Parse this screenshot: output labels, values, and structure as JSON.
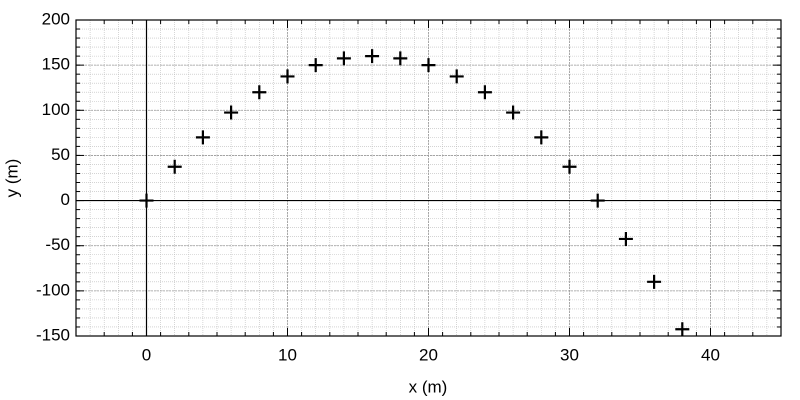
{
  "chart_data": {
    "type": "scatter",
    "x_label": "x (m)",
    "y_label": "y (m)",
    "x": [
      0,
      2,
      4,
      6,
      8,
      10,
      12,
      14,
      16,
      18,
      20,
      22,
      24,
      26,
      28,
      30,
      32,
      34,
      36,
      38
    ],
    "values": [
      0,
      37.5,
      70,
      97.5,
      120,
      137.5,
      150,
      157.5,
      160,
      157.5,
      150,
      137.5,
      120,
      97.5,
      70,
      37.5,
      0,
      -42.5,
      -90,
      -142.5
    ],
    "color": "#000000",
    "marker": "plus",
    "xlim": [
      -5,
      45
    ],
    "xticks": [
      0,
      10,
      20,
      30,
      40
    ],
    "ylim": [
      -150,
      200
    ],
    "yticks": [
      -150,
      -100,
      -50,
      0,
      50,
      100,
      150,
      200
    ],
    "grid": true,
    "minor_grid": true,
    "zero_lines": true
  }
}
